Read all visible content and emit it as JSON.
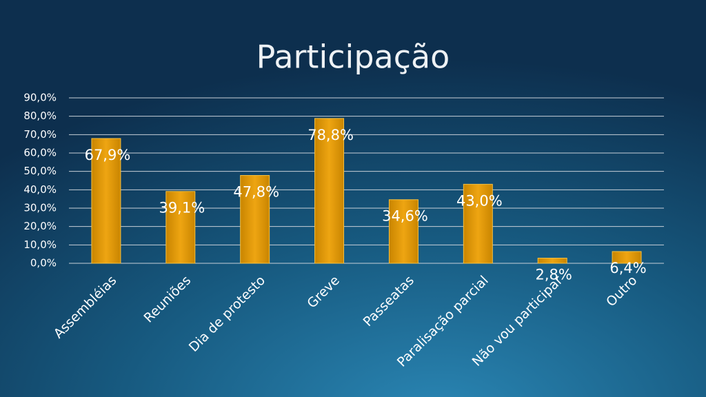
{
  "chart_data": {
    "type": "bar",
    "title": "Participação",
    "categories": [
      "Assembléias",
      "Reuniões",
      "Dia de protesto",
      "Greve",
      "Passeatas",
      "Paralisação parcial",
      "Não vou participar",
      "Outro"
    ],
    "values": [
      67.9,
      39.1,
      47.8,
      78.8,
      34.6,
      43.0,
      2.8,
      6.4
    ],
    "value_labels": [
      "67,9%",
      "39,1%",
      "47,8%",
      "78,8%",
      "34,6%",
      "43,0%",
      "2,8%",
      "6,4%"
    ],
    "color": "#e39b08",
    "ylim": [
      0,
      90
    ],
    "yticks": [
      {
        "value": 0,
        "label": "0,0%"
      },
      {
        "value": 10,
        "label": "10,0%"
      },
      {
        "value": 20,
        "label": "20,0%"
      },
      {
        "value": 30,
        "label": "30,0%"
      },
      {
        "value": 40,
        "label": "40,0%"
      },
      {
        "value": 50,
        "label": "50,0%"
      },
      {
        "value": 60,
        "label": "60,0%"
      },
      {
        "value": 70,
        "label": "70,0%"
      },
      {
        "value": 80,
        "label": "80,0%"
      },
      {
        "value": 90,
        "label": "90,0%"
      }
    ],
    "grid": true
  }
}
